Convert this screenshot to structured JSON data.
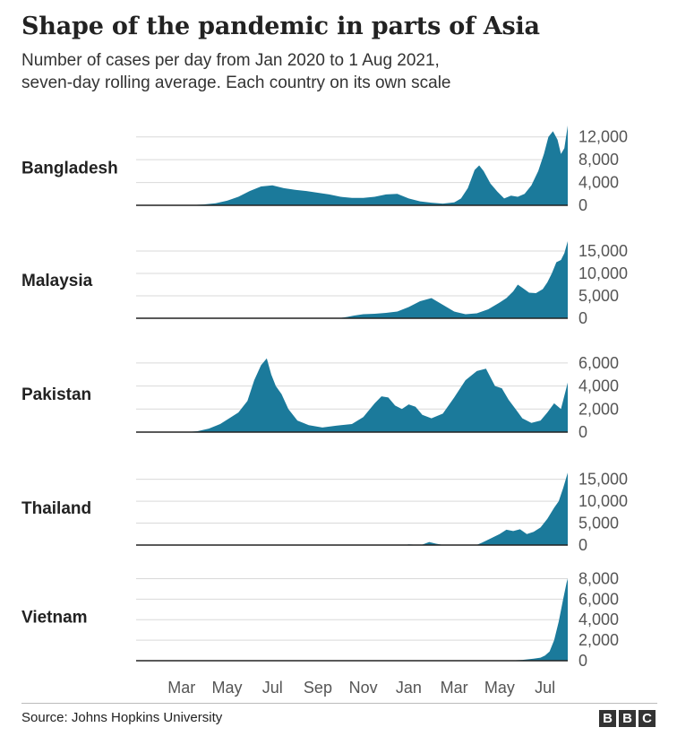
{
  "header": {
    "title": "Shape of the pandemic in parts of Asia",
    "subtitle_line1": "Number of cases per day from Jan 2020 to  1 Aug 2021,",
    "subtitle_line2": "seven-day rolling average. Each country on its own scale"
  },
  "footer": {
    "source": "Source: Johns Hopkins University",
    "logo_letters": [
      "B",
      "B",
      "C"
    ]
  },
  "colors": {
    "area_fill": "#1b7a9b",
    "grid": "#d9d9d9",
    "baseline": "#222222"
  },
  "chart_data": {
    "type": "area",
    "layout": "small-multiples",
    "x_unit": "month since Jan 2020",
    "x_range": [
      0,
      19
    ],
    "x_tick_labels": [
      "Mar",
      "May",
      "Jul",
      "Sep",
      "Nov",
      "Jan",
      "Mar",
      "May",
      "Jul"
    ],
    "x_tick_values": [
      2,
      4,
      6,
      8,
      10,
      12,
      14,
      16,
      18
    ],
    "grid": true,
    "series": [
      {
        "name": "Bangladesh",
        "ylim": [
          0,
          14000
        ],
        "y_ticks": [
          0,
          4000,
          8000,
          12000
        ],
        "y_tick_labels": [
          "0",
          "4,000",
          "8,000",
          "12,000"
        ],
        "x": [
          0,
          2.3,
          3,
          3.5,
          4,
          4.5,
          5,
          5.5,
          6,
          6.5,
          7,
          7.5,
          8,
          8.5,
          9,
          9.5,
          10,
          10.5,
          11,
          11.5,
          12,
          12.5,
          13,
          13.5,
          14,
          14.3,
          14.6,
          14.9,
          15.1,
          15.3,
          15.6,
          15.9,
          16.2,
          16.5,
          16.8,
          17.1,
          17.4,
          17.7,
          17.95,
          18.15,
          18.35,
          18.55,
          18.7,
          18.85,
          19
        ],
        "y": [
          0,
          0,
          150,
          350,
          800,
          1500,
          2500,
          3300,
          3500,
          3000,
          2700,
          2500,
          2200,
          1900,
          1500,
          1300,
          1300,
          1500,
          1900,
          2000,
          1200,
          700,
          450,
          300,
          500,
          1200,
          3000,
          6200,
          7000,
          6000,
          3800,
          2400,
          1200,
          1700,
          1500,
          2000,
          3500,
          6000,
          9000,
          12000,
          13000,
          11500,
          9000,
          10000,
          14000
        ]
      },
      {
        "name": "Malaysia",
        "ylim": [
          0,
          18000
        ],
        "y_ticks": [
          0,
          5000,
          10000,
          15000
        ],
        "y_tick_labels": [
          "0",
          "5,000",
          "10,000",
          "15,000"
        ],
        "x": [
          0,
          8.9,
          9.3,
          9.6,
          10,
          10.5,
          11,
          11.5,
          12,
          12.5,
          13,
          13.5,
          14,
          14.5,
          15,
          15.5,
          16,
          16.3,
          16.6,
          16.8,
          17,
          17.3,
          17.6,
          17.9,
          18.1,
          18.3,
          18.5,
          18.7,
          18.85,
          19
        ],
        "y": [
          0,
          0,
          300,
          600,
          900,
          1000,
          1200,
          1500,
          2500,
          3800,
          4500,
          3000,
          1500,
          900,
          1100,
          2000,
          3500,
          4500,
          6000,
          7500,
          6800,
          5700,
          5600,
          6500,
          8000,
          10000,
          12500,
          13000,
          14500,
          17200
        ]
      },
      {
        "name": "Pakistan",
        "ylim": [
          0,
          7000
        ],
        "y_ticks": [
          0,
          2000,
          4000,
          6000
        ],
        "y_tick_labels": [
          "0",
          "2,000",
          "4,000",
          "6,000"
        ],
        "x": [
          0,
          2.2,
          2.7,
          3.2,
          3.7,
          4.1,
          4.5,
          4.9,
          5.2,
          5.5,
          5.75,
          5.95,
          6.15,
          6.4,
          6.7,
          7.1,
          7.6,
          8.2,
          8.8,
          9.5,
          10,
          10.5,
          10.8,
          11.1,
          11.4,
          11.7,
          12,
          12.3,
          12.6,
          13,
          13.5,
          14,
          14.5,
          15,
          15.4,
          15.8,
          16.1,
          16.4,
          16.7,
          17,
          17.4,
          17.8,
          18.1,
          18.4,
          18.7,
          19
        ],
        "y": [
          0,
          0,
          80,
          300,
          700,
          1200,
          1700,
          2700,
          4500,
          5800,
          6400,
          5000,
          4000,
          3300,
          2000,
          1000,
          600,
          400,
          550,
          700,
          1300,
          2500,
          3100,
          3000,
          2300,
          2000,
          2400,
          2200,
          1500,
          1200,
          1600,
          3000,
          4500,
          5300,
          5500,
          4000,
          3800,
          2800,
          2000,
          1200,
          800,
          1000,
          1700,
          2500,
          2000,
          4300
        ]
      },
      {
        "name": "Thailand",
        "ylim": [
          0,
          18000
        ],
        "y_ticks": [
          0,
          5000,
          10000,
          15000
        ],
        "y_tick_labels": [
          "0",
          "5,000",
          "10,000",
          "15,000"
        ],
        "x": [
          0,
          11.8,
          12.0,
          12.2,
          12.6,
          12.9,
          13.2,
          13.5,
          15,
          15.2,
          15.6,
          16,
          16.3,
          16.6,
          16.9,
          17.2,
          17.5,
          17.8,
          18.1,
          18.4,
          18.6,
          18.8,
          19
        ],
        "y": [
          0,
          0,
          150,
          100,
          100,
          700,
          300,
          50,
          50,
          500,
          1500,
          2500,
          3500,
          3200,
          3600,
          2500,
          3000,
          4000,
          6000,
          8500,
          10000,
          13000,
          16500
        ]
      },
      {
        "name": "Vietnam",
        "ylim": [
          0,
          9000
        ],
        "y_ticks": [
          0,
          2000,
          4000,
          6000,
          8000
        ],
        "y_tick_labels": [
          "0",
          "2,000",
          "4,000",
          "6,000",
          "8,000"
        ],
        "x": [
          0,
          16,
          16.5,
          17,
          17.5,
          17.8,
          18.0,
          18.2,
          18.4,
          18.6,
          18.8,
          18.95,
          19
        ],
        "y": [
          0,
          0,
          30,
          80,
          200,
          300,
          500,
          900,
          2000,
          3800,
          6000,
          7600,
          8000
        ]
      }
    ]
  }
}
